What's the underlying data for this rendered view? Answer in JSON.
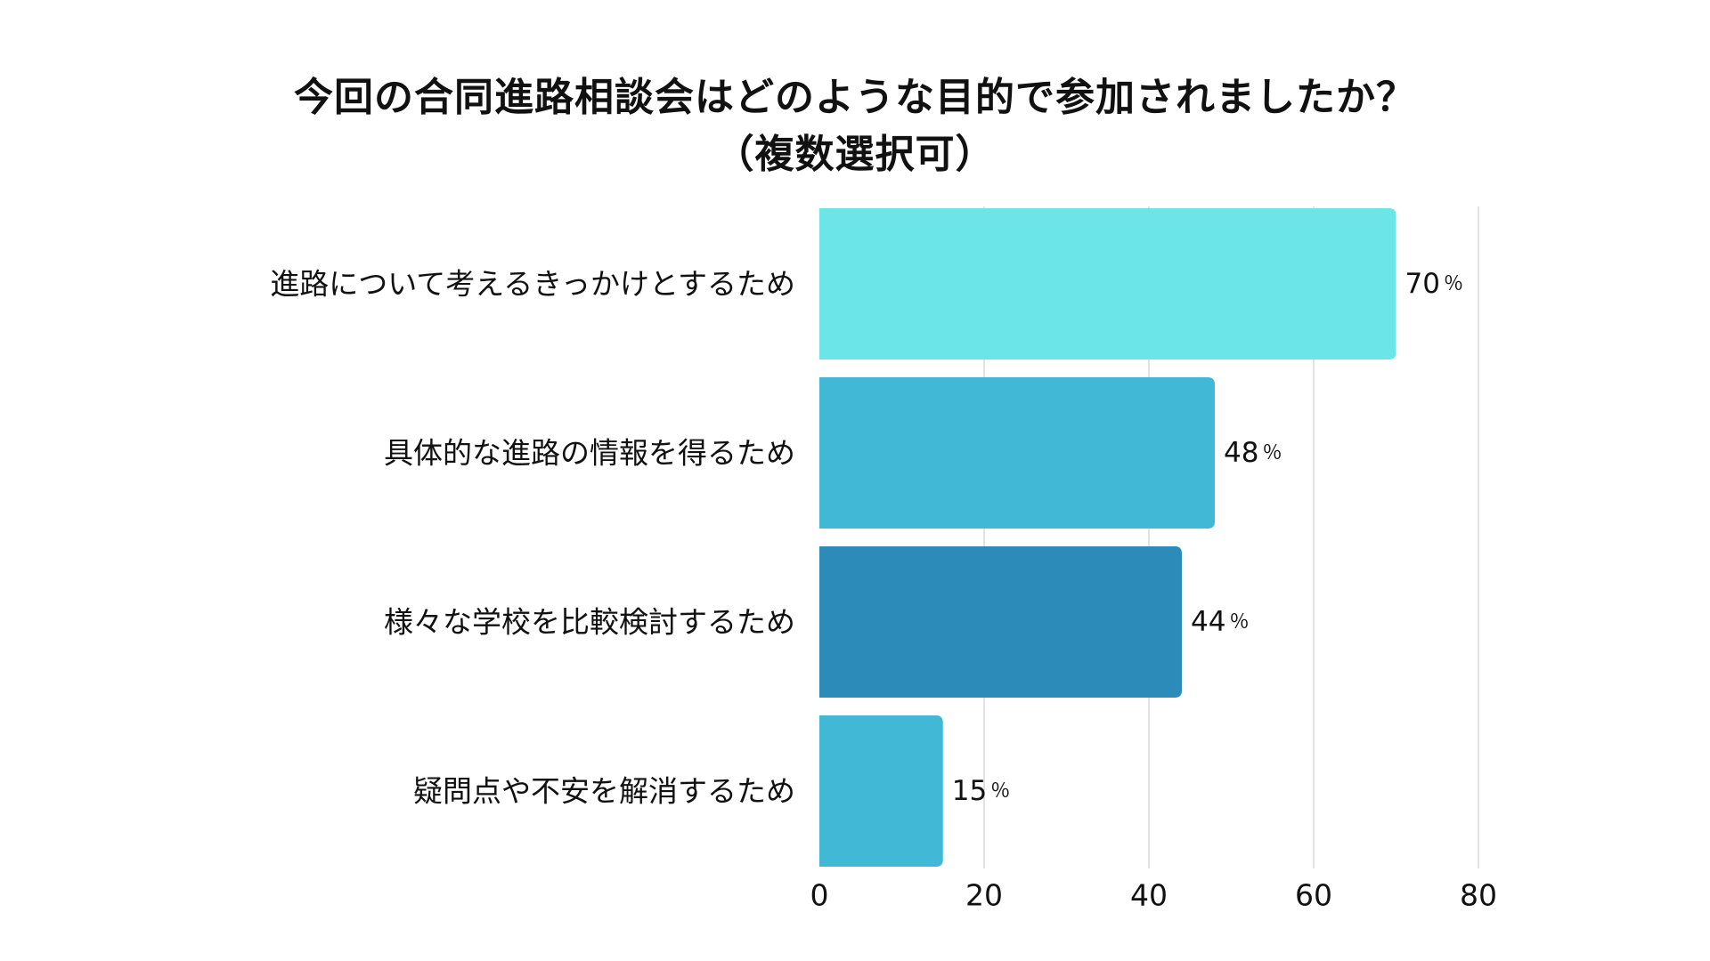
{
  "chart_data": {
    "type": "bar",
    "orientation": "horizontal",
    "title_line1": "今回の合同進路相談会はどのような目的で参加されましたか？",
    "title_line2": "（複数選択可）",
    "categories": [
      "進路について考えるきっかけとするため",
      "具体的な進路の情報を得るため",
      "様々な学校を比較検討するため",
      "疑問点や不安を解消するため"
    ],
    "values": [
      70,
      48,
      44,
      15
    ],
    "value_unit": "％",
    "colors": [
      "#6ce5e8",
      "#41b8d5",
      "#2d8bba",
      "#41b8d5"
    ],
    "xlim": [
      0,
      80
    ],
    "xticks": [
      0,
      20,
      40,
      60,
      80
    ],
    "grid": true,
    "xlabel": "",
    "ylabel": ""
  }
}
